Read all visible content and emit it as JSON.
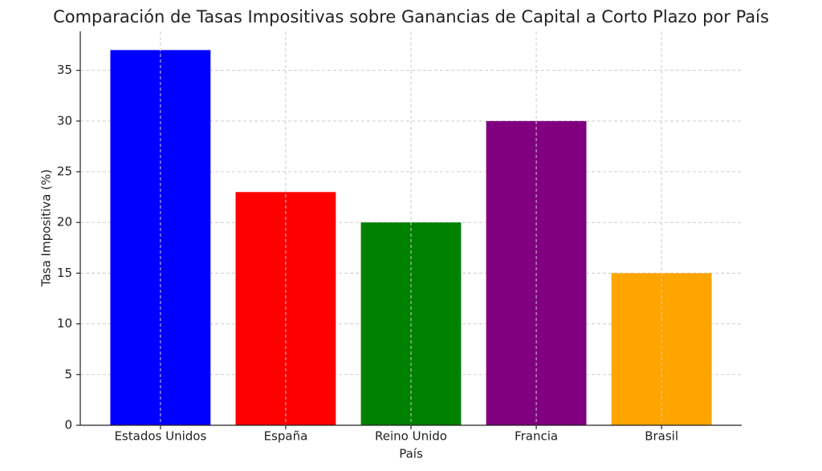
{
  "chart_data": {
    "type": "bar",
    "title": "Comparación de Tasas Impositivas sobre Ganancias de Capital a Corto Plazo por País",
    "x_label": "País",
    "y_label": "Tasa Impositiva (%)",
    "categories": [
      "Estados Unidos",
      "España",
      "Reino Unido",
      "Francia",
      "Brasil"
    ],
    "values": [
      37,
      23,
      20,
      30,
      15
    ],
    "colors": [
      "#0000ff",
      "#ff0000",
      "#008000",
      "#800080",
      "#ffa500"
    ],
    "ylim": [
      0,
      38.85
    ],
    "yticks": [
      0,
      5,
      10,
      15,
      20,
      25,
      30,
      35
    ],
    "grid": true
  }
}
